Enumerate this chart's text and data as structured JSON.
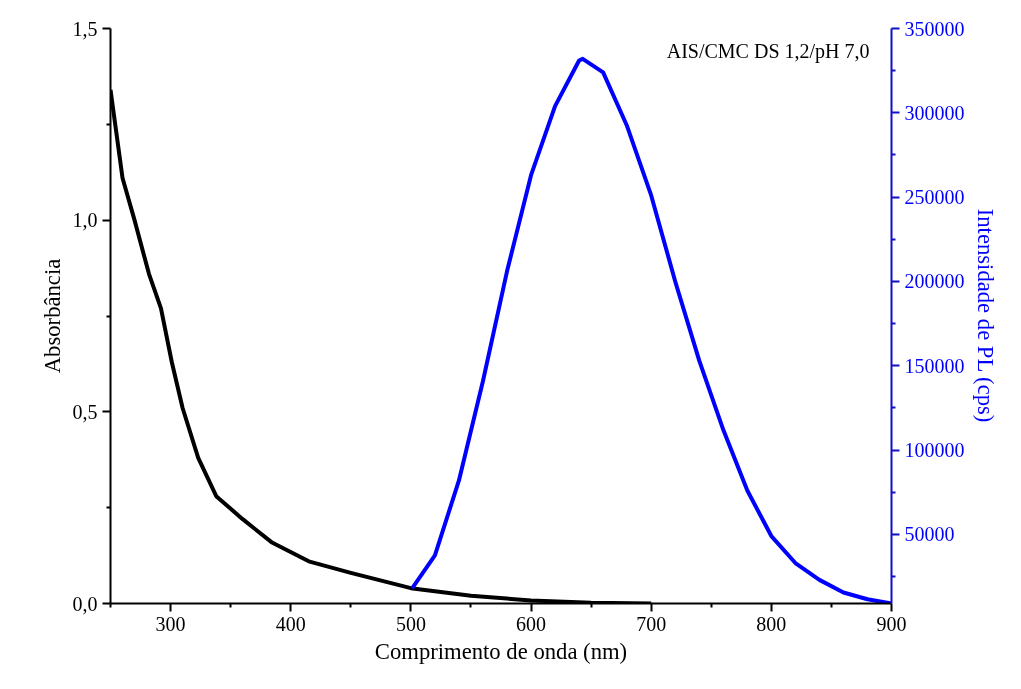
{
  "chart_data": {
    "type": "line",
    "xlabel": "Comprimento de onda (nm)",
    "ylabel": "Absorbância",
    "y2label": "Intensidade de PL (cps)",
    "annotations": [
      "AIS/CMC DS 1,2/pH 7,0"
    ],
    "xlim": [
      250,
      900
    ],
    "xticks": [
      300,
      400,
      500,
      600,
      700,
      800,
      900
    ],
    "ylim": [
      0,
      1.5
    ],
    "yticks": [
      {
        "value": 0,
        "label": "0,0"
      },
      {
        "value": 0.5,
        "label": "0,5"
      },
      {
        "value": 1.0,
        "label": "1,0"
      },
      {
        "value": 1.5,
        "label": "1,5"
      }
    ],
    "y2lim": [
      9000,
      350000
    ],
    "y2ticks": [
      50000,
      100000,
      150000,
      200000,
      250000,
      300000,
      350000
    ],
    "grid": false,
    "marker": "none",
    "line_style": "solid",
    "series": [
      {
        "color": "#000000",
        "x": [
          250,
          260,
          270,
          282,
          292,
          301,
          310,
          323,
          338,
          360,
          384,
          415,
          450,
          500,
          550,
          600,
          650,
          700
        ],
        "values": [
          1.34,
          1.11,
          1.0,
          0.86,
          0.77,
          0.63,
          0.51,
          0.38,
          0.28,
          0.22,
          0.16,
          0.11,
          0.08,
          0.04,
          0.02,
          0.008,
          0.002,
          0.0
        ]
      },
      {
        "color": "#0000ff",
        "axis": "y2",
        "x": [
          501,
          520,
          540,
          560,
          580,
          600,
          620,
          640,
          643,
          660,
          680,
          700,
          720,
          740,
          760,
          780,
          800,
          820,
          840,
          860,
          880,
          900
        ],
        "values": [
          18000,
          37500,
          82000,
          141000,
          206000,
          263000,
          304000,
          331000,
          332000,
          324000,
          292000,
          251000,
          200000,
          153000,
          112000,
          76000,
          49000,
          33000,
          23000,
          15500,
          11500,
          9000
        ]
      }
    ]
  }
}
